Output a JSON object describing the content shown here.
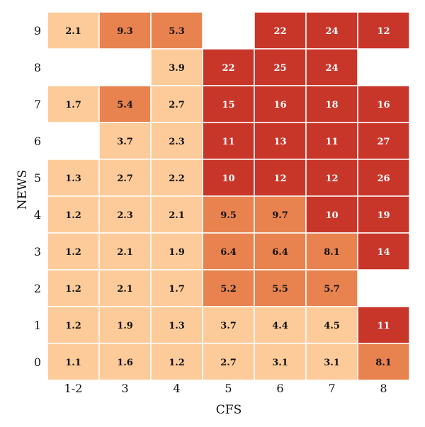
{
  "chart_data": {
    "type": "heatmap",
    "xlabel": "CFS",
    "ylabel": "NEWS",
    "x_categories": [
      "1-2",
      "3",
      "4",
      "5",
      "6",
      "7",
      "8"
    ],
    "y_categories": [
      "9",
      "8",
      "7",
      "6",
      "5",
      "4",
      "3",
      "2",
      "1",
      "0"
    ],
    "values": [
      [
        "2.1",
        "9.3",
        "5.3",
        null,
        "22",
        "24",
        "12"
      ],
      [
        null,
        null,
        "3.9",
        "22",
        "25",
        "24",
        null
      ],
      [
        "1.7",
        "5.4",
        "2.7",
        "15",
        "16",
        "18",
        "16"
      ],
      [
        null,
        "3.7",
        "2.3",
        "11",
        "13",
        "11",
        "27"
      ],
      [
        "1.3",
        "2.7",
        "2.2",
        "10",
        "12",
        "12",
        "26"
      ],
      [
        "1.2",
        "2.3",
        "2.1",
        "9.5",
        "9.7",
        "10",
        "19"
      ],
      [
        "1.2",
        "2.1",
        "1.9",
        "6.4",
        "6.4",
        "8.1",
        "14"
      ],
      [
        "1.2",
        "2.1",
        "1.7",
        "5.2",
        "5.5",
        "5.7",
        null
      ],
      [
        "1.2",
        "1.9",
        "1.3",
        "3.7",
        "4.4",
        "4.5",
        "11"
      ],
      [
        "1.1",
        "1.6",
        "1.2",
        "2.7",
        "3.1",
        "3.1",
        "8.1"
      ]
    ],
    "color_levels": {
      "low": "#fdcb99",
      "mid": "#e8834f",
      "high": "#c8362a"
    },
    "level_assignment": [
      [
        "low",
        "mid",
        "mid",
        null,
        "high",
        "high",
        "high"
      ],
      [
        null,
        null,
        "low",
        "high",
        "high",
        "high",
        null
      ],
      [
        "low",
        "mid",
        "low",
        "high",
        "high",
        "high",
        "high"
      ],
      [
        null,
        "low",
        "low",
        "high",
        "high",
        "high",
        "high"
      ],
      [
        "low",
        "low",
        "low",
        "high",
        "high",
        "high",
        "high"
      ],
      [
        "low",
        "low",
        "low",
        "mid",
        "mid",
        "high",
        "high"
      ],
      [
        "low",
        "low",
        "low",
        "mid",
        "mid",
        "mid",
        "high"
      ],
      [
        "low",
        "low",
        "low",
        "mid",
        "mid",
        "mid",
        null
      ],
      [
        "low",
        "low",
        "low",
        "low",
        "low",
        "low",
        "high"
      ],
      [
        "low",
        "low",
        "low",
        "low",
        "low",
        "low",
        "mid"
      ]
    ],
    "label_color_on_low": "#111111",
    "label_color_on_mid": "#111111",
    "label_color_on_high": "#ffffff",
    "grid_line_color": "#ffffff"
  }
}
